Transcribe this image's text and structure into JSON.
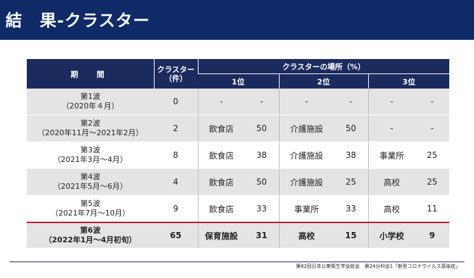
{
  "title": "結　果-クラスター",
  "table": {
    "header": {
      "period": "期　間",
      "cluster_count": "クラスター\n（件）",
      "places": "クラスターの場所（%）",
      "rank1": "1位",
      "rank2": "2位",
      "rank3": "3位"
    },
    "rows": [
      {
        "wave": "第1波",
        "period": "（2020年４月）",
        "count": "0",
        "p1": "-",
        "v1": "-",
        "p2": "-",
        "v2": "-",
        "p3": "-",
        "v3": "-"
      },
      {
        "wave": "第2波",
        "period": "（2020年11月～2021年2月）",
        "count": "2",
        "p1": "飲食店",
        "v1": "50",
        "p2": "介護施設",
        "v2": "50",
        "p3": "-",
        "v3": "-"
      },
      {
        "wave": "第3波",
        "period": "（2021年3月～4月）",
        "count": "8",
        "p1": "飲食店",
        "v1": "38",
        "p2": "介護施設",
        "v2": "38",
        "p3": "事業所",
        "v3": "25"
      },
      {
        "wave": "第4波",
        "period": "（2021年5月～6月）",
        "count": "4",
        "p1": "飲食店",
        "v1": "50",
        "p2": "介護施設",
        "v2": "25",
        "p3": "高校",
        "v3": "25"
      },
      {
        "wave": "第5波",
        "period": "（2021年7月～10月）",
        "count": "9",
        "p1": "飲食店",
        "v1": "33",
        "p2": "事業所",
        "v2": "33",
        "p3": "高校",
        "v3": "11"
      },
      {
        "wave": "第6波",
        "period": "（2022年1月～4月初旬）",
        "count": "65",
        "p1": "保育施設",
        "v1": "31",
        "p2": "高校",
        "v2": "15",
        "p3": "小学校",
        "v3": "9"
      }
    ]
  },
  "footer": "第82回日本公衆衛生学会総会　第24分科会1「新型コロナウイルス感染症」"
}
